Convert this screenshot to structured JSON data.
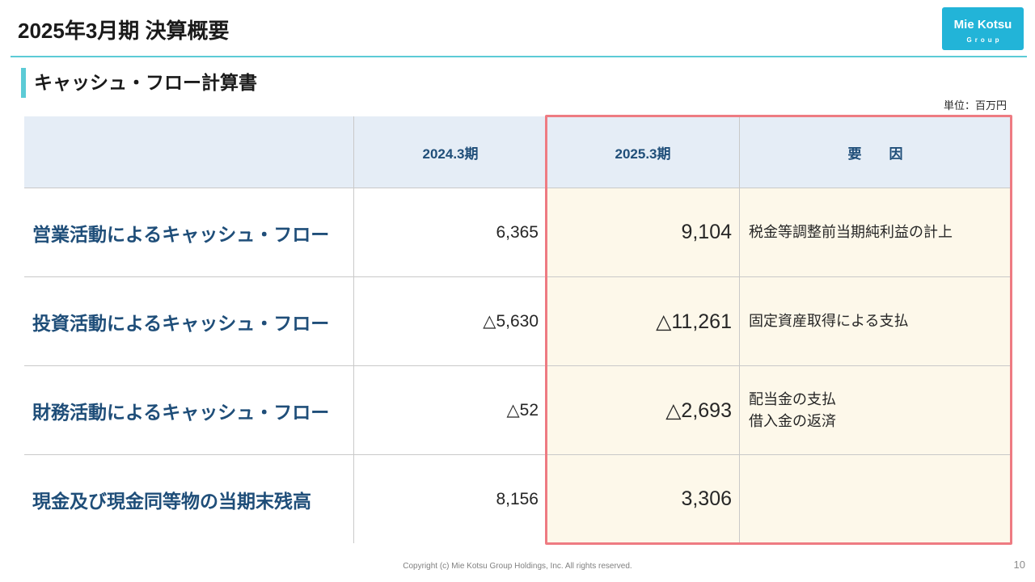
{
  "slide": {
    "title": "2025年3月期 決算概要",
    "section_title": "キャッシュ・フロー計算書",
    "unit": "単位：百万円",
    "copyright": "Copyright (c) Mie Kotsu Group Holdings, Inc. All rights reserved.",
    "page_number": "10"
  },
  "logo": {
    "wordmark": "Mie Kotsu",
    "subtext": "Group"
  },
  "table": {
    "headers": {
      "prev_period": "2024.3期",
      "curr_period": "2025.3期",
      "reason": "要　　因"
    },
    "rows": [
      {
        "label": "営業活動によるキャッシュ・フロー",
        "prev_period": "6,365",
        "curr_period": "9,104",
        "reason_lines": [
          "税金等調整前当期純利益の計上"
        ]
      },
      {
        "label": "投資活動によるキャッシュ・フロー",
        "prev_period": "△5,630",
        "curr_period": "△11,261",
        "reason_lines": [
          "固定資産取得による支払"
        ]
      },
      {
        "label": "財務活動によるキャッシュ・フロー",
        "prev_period": "△52",
        "curr_period": "△2,693",
        "reason_lines": [
          "配当金の支払",
          "借入金の返済"
        ]
      },
      {
        "label": "現金及び現金同等物の当期末残高",
        "prev_period": "8,156",
        "curr_period": "3,306",
        "reason_lines": []
      }
    ]
  },
  "colors": {
    "accent_teal": "#5ccbd6",
    "logo_blue": "#22b4d8",
    "label_navy": "#1f4e79",
    "header_bg": "#e5edf6",
    "highlight_bg": "#fdf8ea",
    "highlight_border": "#ee7b82"
  }
}
